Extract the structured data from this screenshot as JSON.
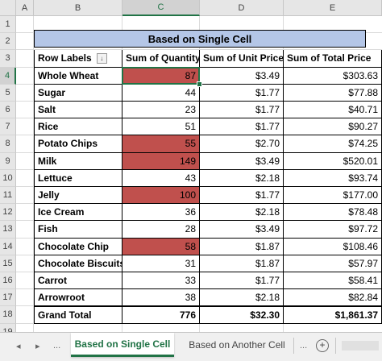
{
  "column_headers": [
    "A",
    "B",
    "C",
    "D",
    "E"
  ],
  "row_numbers": [
    "1",
    "2",
    "3",
    "4",
    "5",
    "6",
    "7",
    "8",
    "9",
    "10",
    "11",
    "12",
    "13",
    "14",
    "15",
    "16",
    "17",
    "18",
    "19"
  ],
  "table": {
    "title": "Based on Single Cell",
    "headers": [
      "Row Labels",
      "Sum of Quantity",
      "Sum of Unit Price",
      "Sum of Total Price"
    ],
    "filter_icon": "↓",
    "rows": [
      {
        "label": "Whole Wheat",
        "qty": "87",
        "unit": "$3.49",
        "total": "$303.63",
        "highlight": true
      },
      {
        "label": "Sugar",
        "qty": "44",
        "unit": "$1.77",
        "total": "$77.88",
        "highlight": false
      },
      {
        "label": "Salt",
        "qty": "23",
        "unit": "$1.77",
        "total": "$40.71",
        "highlight": false
      },
      {
        "label": "Rice",
        "qty": "51",
        "unit": "$1.77",
        "total": "$90.27",
        "highlight": false
      },
      {
        "label": "Potato Chips",
        "qty": "55",
        "unit": "$2.70",
        "total": "$74.25",
        "highlight": true
      },
      {
        "label": "Milk",
        "qty": "149",
        "unit": "$3.49",
        "total": "$520.01",
        "highlight": true
      },
      {
        "label": "Lettuce",
        "qty": "43",
        "unit": "$2.18",
        "total": "$93.74",
        "highlight": false
      },
      {
        "label": "Jelly",
        "qty": "100",
        "unit": "$1.77",
        "total": "$177.00",
        "highlight": true
      },
      {
        "label": "Ice Cream",
        "qty": "36",
        "unit": "$2.18",
        "total": "$78.48",
        "highlight": false
      },
      {
        "label": "Fish",
        "qty": "28",
        "unit": "$3.49",
        "total": "$97.72",
        "highlight": false
      },
      {
        "label": "Chocolate Chip",
        "qty": "58",
        "unit": "$1.87",
        "total": "$108.46",
        "highlight": true
      },
      {
        "label": "Chocolate Biscuits",
        "qty": "31",
        "unit": "$1.87",
        "total": "$57.97",
        "highlight": false
      },
      {
        "label": "Carrot",
        "qty": "33",
        "unit": "$1.77",
        "total": "$58.41",
        "highlight": false
      },
      {
        "label": "Arrowroot",
        "qty": "38",
        "unit": "$2.18",
        "total": "$82.84",
        "highlight": false
      }
    ],
    "grand_total": {
      "label": "Grand Total",
      "qty": "776",
      "unit": "$32.30",
      "total": "$1,861.37"
    }
  },
  "colors": {
    "highlight": "#c0504d",
    "title_fill": "#b4c6e7",
    "accent": "#217346"
  },
  "active_cell": "C4",
  "tabs": {
    "nav_prev": "◂",
    "nav_next": "▸",
    "ellipsis": "...",
    "sheets": [
      "Based on Single Cell",
      "Based on Another Cell"
    ],
    "active": "Based on Single Cell",
    "trailing_ellipsis": "...",
    "add": "+"
  }
}
